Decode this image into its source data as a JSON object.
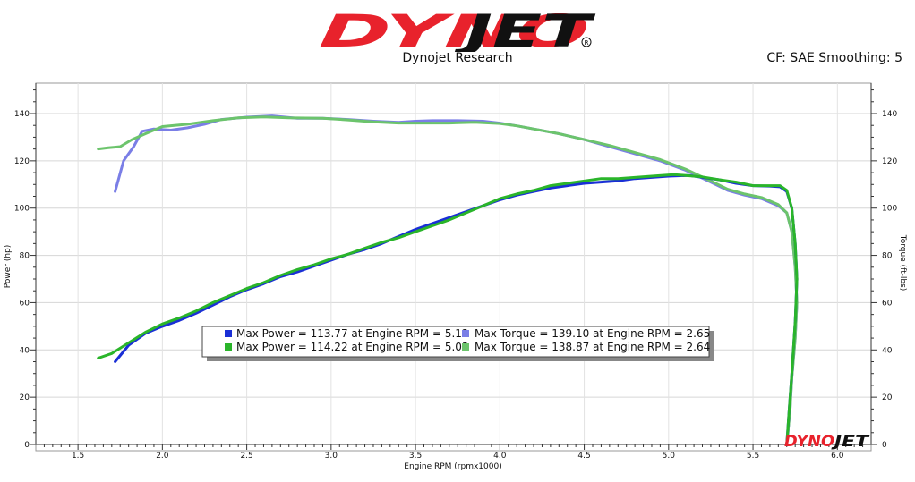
{
  "header": {
    "logo_text": "DYNOJET",
    "subtitle": "Dynojet Research",
    "cf_info": "CF: SAE Smoothing: 5",
    "watermark": "DYNOJET"
  },
  "colors": {
    "run1_power": "#1a2fd6",
    "run1_torque": "#7a7ee6",
    "run2_power": "#2ab52a",
    "run2_torque": "#6cc46c",
    "logo_red": "#e8222c",
    "logo_black": "#111111"
  },
  "chart_data": {
    "type": "line",
    "xlabel": "Engine RPM (rpmx1000)",
    "ylabel_left": "Power (hp)",
    "ylabel_right": "Torque (ft-lbs)",
    "xlim": [
      1.25,
      6.2
    ],
    "ylim": [
      0,
      150
    ],
    "x_ticks": [
      "1.5",
      "2.0",
      "2.5",
      "3.0",
      "3.5",
      "4.0",
      "4.5",
      "5.0",
      "5.5",
      "6.0"
    ],
    "y_ticks": [
      "0",
      "20",
      "40",
      "60",
      "80",
      "100",
      "120",
      "140"
    ],
    "grid": true,
    "legend_position": "center-bottom",
    "legend": [
      {
        "label": "Max Power = 113.77 at Engine RPM = 5.12",
        "color": "#1a2fd6"
      },
      {
        "label": "Max Torque = 139.10 at Engine RPM = 2.65",
        "color": "#7a7ee6"
      },
      {
        "label": "Max Power = 114.22 at Engine RPM = 5.03",
        "color": "#2ab52a"
      },
      {
        "label": "Max Torque = 138.87 at Engine RPM = 2.64",
        "color": "#6cc46c"
      }
    ],
    "series": [
      {
        "role": "run1-torque",
        "color": "#7a7ee6",
        "points": [
          [
            1.72,
            107
          ],
          [
            1.77,
            120
          ],
          [
            1.83,
            126
          ],
          [
            1.88,
            132.5
          ],
          [
            1.95,
            133.5
          ],
          [
            2.05,
            133
          ],
          [
            2.15,
            134
          ],
          [
            2.25,
            135.5
          ],
          [
            2.35,
            137.5
          ],
          [
            2.5,
            138.5
          ],
          [
            2.65,
            139
          ],
          [
            2.8,
            138
          ],
          [
            2.95,
            138
          ],
          [
            3.1,
            137.5
          ],
          [
            3.25,
            136.8
          ],
          [
            3.4,
            136.3
          ],
          [
            3.5,
            136.8
          ],
          [
            3.6,
            137
          ],
          [
            3.75,
            137
          ],
          [
            3.9,
            136.8
          ],
          [
            4.0,
            136
          ],
          [
            4.1,
            134.8
          ],
          [
            4.2,
            133.5
          ],
          [
            4.35,
            131.5
          ],
          [
            4.5,
            129
          ],
          [
            4.65,
            126
          ],
          [
            4.8,
            123
          ],
          [
            4.95,
            120
          ],
          [
            5.1,
            116
          ],
          [
            5.25,
            111
          ],
          [
            5.35,
            107.5
          ],
          [
            5.45,
            105.5
          ],
          [
            5.55,
            104
          ],
          [
            5.65,
            101
          ],
          [
            5.7,
            98
          ],
          [
            5.73,
            90
          ],
          [
            5.75,
            75
          ],
          [
            5.76,
            60
          ],
          [
            5.75,
            45
          ],
          [
            5.73,
            28
          ],
          [
            5.72,
            15
          ],
          [
            5.7,
            0
          ]
        ]
      },
      {
        "role": "run2-torque",
        "color": "#6cc46c",
        "points": [
          [
            1.62,
            125
          ],
          [
            1.68,
            125.5
          ],
          [
            1.75,
            126
          ],
          [
            1.82,
            129
          ],
          [
            1.9,
            131.5
          ],
          [
            2.0,
            134.5
          ],
          [
            2.15,
            135.5
          ],
          [
            2.3,
            137
          ],
          [
            2.45,
            138.2
          ],
          [
            2.6,
            138.6
          ],
          [
            2.75,
            138.2
          ],
          [
            2.95,
            138
          ],
          [
            3.1,
            137.3
          ],
          [
            3.25,
            136.5
          ],
          [
            3.4,
            136
          ],
          [
            3.55,
            136
          ],
          [
            3.7,
            136
          ],
          [
            3.85,
            136.3
          ],
          [
            4.0,
            135.8
          ],
          [
            4.1,
            134.8
          ],
          [
            4.2,
            133.5
          ],
          [
            4.35,
            131.5
          ],
          [
            4.5,
            129
          ],
          [
            4.65,
            126.5
          ],
          [
            4.8,
            123.5
          ],
          [
            4.95,
            120.5
          ],
          [
            5.1,
            116.5
          ],
          [
            5.25,
            111.5
          ],
          [
            5.35,
            108
          ],
          [
            5.45,
            106
          ],
          [
            5.55,
            104.5
          ],
          [
            5.65,
            101.5
          ],
          [
            5.7,
            98
          ],
          [
            5.73,
            90
          ],
          [
            5.75,
            75
          ],
          [
            5.76,
            60
          ],
          [
            5.75,
            45
          ],
          [
            5.73,
            28
          ],
          [
            5.72,
            15
          ],
          [
            5.7,
            0
          ]
        ]
      },
      {
        "role": "run1-power",
        "color": "#1a2fd6",
        "points": [
          [
            1.72,
            35
          ],
          [
            1.8,
            42
          ],
          [
            1.9,
            47
          ],
          [
            2.0,
            50
          ],
          [
            2.1,
            52.5
          ],
          [
            2.2,
            55.5
          ],
          [
            2.3,
            59
          ],
          [
            2.4,
            62.5
          ],
          [
            2.5,
            65.5
          ],
          [
            2.6,
            68
          ],
          [
            2.7,
            71
          ],
          [
            2.8,
            73
          ],
          [
            2.9,
            75.5
          ],
          [
            3.0,
            78
          ],
          [
            3.1,
            80.5
          ],
          [
            3.2,
            82.5
          ],
          [
            3.3,
            85
          ],
          [
            3.4,
            88
          ],
          [
            3.5,
            91
          ],
          [
            3.6,
            93.5
          ],
          [
            3.7,
            96
          ],
          [
            3.8,
            98.5
          ],
          [
            3.9,
            101
          ],
          [
            4.0,
            103.5
          ],
          [
            4.1,
            105.5
          ],
          [
            4.2,
            107
          ],
          [
            4.3,
            108.5
          ],
          [
            4.4,
            109.5
          ],
          [
            4.5,
            110.5
          ],
          [
            4.6,
            111
          ],
          [
            4.7,
            111.5
          ],
          [
            4.8,
            112.5
          ],
          [
            4.9,
            113
          ],
          [
            5.0,
            113.5
          ],
          [
            5.12,
            113.8
          ],
          [
            5.2,
            113
          ],
          [
            5.3,
            112
          ],
          [
            5.4,
            110.5
          ],
          [
            5.5,
            109.5
          ],
          [
            5.6,
            109.3
          ],
          [
            5.66,
            109
          ],
          [
            5.7,
            107
          ],
          [
            5.73,
            100
          ],
          [
            5.75,
            85
          ],
          [
            5.76,
            70
          ],
          [
            5.75,
            52
          ],
          [
            5.73,
            30
          ],
          [
            5.71,
            10
          ],
          [
            5.7,
            0
          ]
        ]
      },
      {
        "role": "run2-power",
        "color": "#2ab52a",
        "points": [
          [
            1.62,
            36.5
          ],
          [
            1.7,
            38.5
          ],
          [
            1.8,
            43
          ],
          [
            1.9,
            47.5
          ],
          [
            2.0,
            51
          ],
          [
            2.1,
            53.5
          ],
          [
            2.2,
            56.5
          ],
          [
            2.3,
            60
          ],
          [
            2.4,
            63
          ],
          [
            2.5,
            66
          ],
          [
            2.6,
            68.5
          ],
          [
            2.7,
            71.5
          ],
          [
            2.8,
            74
          ],
          [
            2.9,
            76
          ],
          [
            3.0,
            78.5
          ],
          [
            3.1,
            80.5
          ],
          [
            3.2,
            83
          ],
          [
            3.3,
            85.5
          ],
          [
            3.4,
            87.5
          ],
          [
            3.5,
            90
          ],
          [
            3.6,
            92.5
          ],
          [
            3.7,
            95
          ],
          [
            3.8,
            98
          ],
          [
            3.9,
            101
          ],
          [
            4.0,
            104
          ],
          [
            4.1,
            106
          ],
          [
            4.2,
            107.5
          ],
          [
            4.3,
            109.5
          ],
          [
            4.4,
            110.5
          ],
          [
            4.5,
            111.5
          ],
          [
            4.6,
            112.5
          ],
          [
            4.7,
            112.5
          ],
          [
            4.8,
            113
          ],
          [
            4.9,
            113.5
          ],
          [
            5.03,
            114.2
          ],
          [
            5.1,
            113.8
          ],
          [
            5.2,
            113.2
          ],
          [
            5.3,
            112
          ],
          [
            5.4,
            111
          ],
          [
            5.5,
            109.5
          ],
          [
            5.6,
            109.5
          ],
          [
            5.66,
            109.5
          ],
          [
            5.7,
            107.5
          ],
          [
            5.73,
            100
          ],
          [
            5.75,
            85
          ],
          [
            5.76,
            70
          ],
          [
            5.75,
            52
          ],
          [
            5.73,
            30
          ],
          [
            5.71,
            10
          ],
          [
            5.7,
            0
          ]
        ]
      }
    ]
  }
}
